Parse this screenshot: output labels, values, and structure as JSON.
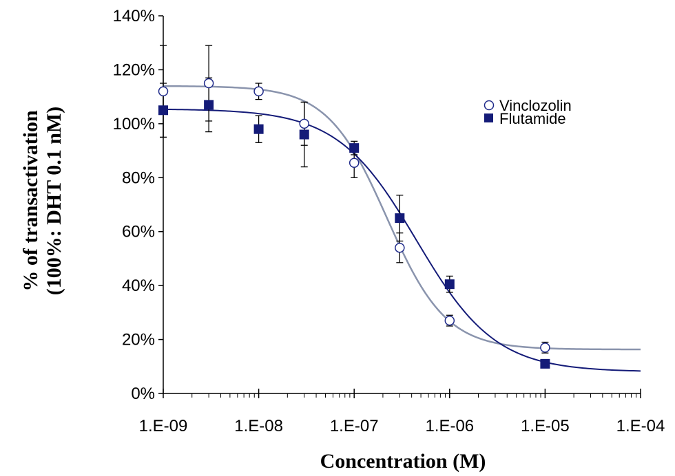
{
  "chart_data": {
    "type": "scatter",
    "xlabel": "Concentration (M)",
    "ylabel_lines": [
      "% of transactivation",
      "(100%: DHT 0.1 nM)"
    ],
    "x_scale": "log",
    "xlim": [
      1e-09,
      0.0001
    ],
    "ylim": [
      0,
      140
    ],
    "x_ticks": [
      1e-09,
      1e-08,
      1e-07,
      1e-06,
      1e-05,
      0.0001
    ],
    "x_tick_labels": [
      "1.E-09",
      "1.E-08",
      "1.E-07",
      "1.E-06",
      "1.E-05",
      "1.E-04"
    ],
    "y_ticks": [
      0,
      20,
      40,
      60,
      80,
      100,
      120,
      140
    ],
    "y_tick_labels": [
      "0%",
      "20%",
      "40%",
      "60%",
      "80%",
      "100%",
      "120%",
      "140%"
    ],
    "grid": false,
    "legend_position": "top-right",
    "series": [
      {
        "name": "Vinclozolin",
        "marker": "open-circle",
        "color": "#1f2a8a",
        "curve_color": "#8a94ad",
        "x": [
          1e-09,
          3e-09,
          1e-08,
          3e-08,
          1e-07,
          3e-07,
          1e-06,
          1e-05
        ],
        "y": [
          112,
          115,
          112,
          100,
          85.5,
          54,
          27,
          17
        ],
        "error": [
          17,
          14,
          3,
          8,
          5.5,
          5.5,
          2,
          2
        ],
        "fit": {
          "top": 114,
          "bottom": 16.3,
          "ec50": 2.2e-07,
          "hill": 1.4
        }
      },
      {
        "name": "Flutamide",
        "marker": "filled-square",
        "color": "#141b78",
        "curve_color": "#141b78",
        "x": [
          1e-09,
          3e-09,
          1e-08,
          3e-08,
          1e-07,
          3e-07,
          1e-06,
          1e-05
        ],
        "y": [
          105,
          107,
          98,
          96,
          91,
          65,
          40.5,
          11
        ],
        "error": [
          10,
          10,
          5,
          12,
          2.5,
          8.5,
          3,
          1
        ],
        "fit": {
          "top": 105.5,
          "bottom": 8,
          "ec50": 4.5e-07,
          "hill": 1.05
        }
      }
    ]
  }
}
